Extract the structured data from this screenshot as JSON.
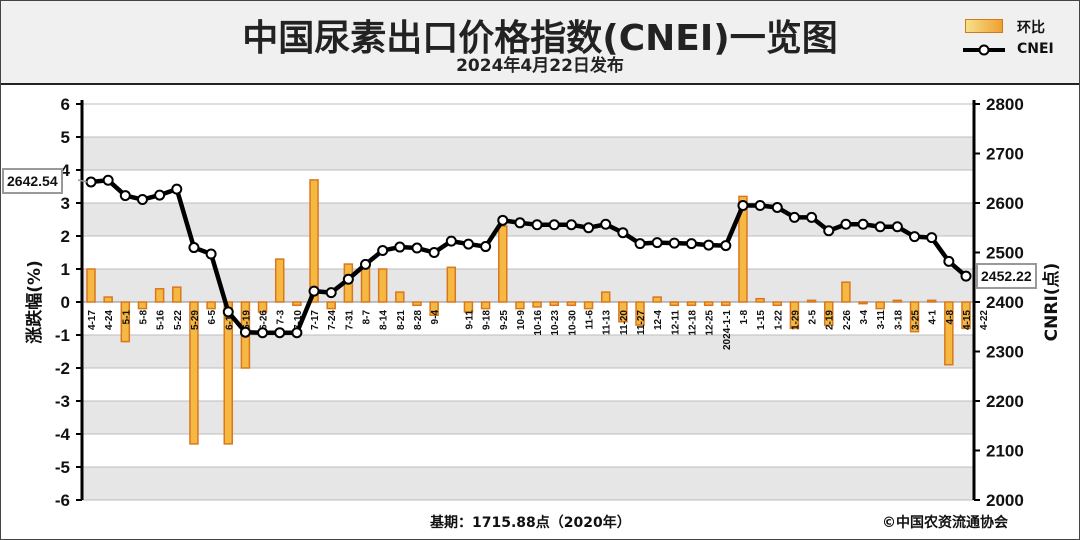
{
  "header": {
    "title": "中国尿素出口价格指数(CNEI)一览图",
    "subtitle": "2024年4月22日发布"
  },
  "legend": {
    "bar_label": "环比",
    "line_label": "CNEI"
  },
  "footer": {
    "base": "基期：1715.88点（2020年）",
    "credit": "©中国农资流通协会"
  },
  "callouts": {
    "start": "2642.54",
    "end": "2452.22"
  },
  "chart_data": {
    "type": "bar+line",
    "x_tick_labels": [
      "4-17",
      "4-24",
      "5-1",
      "5-8",
      "5-16",
      "5-22",
      "5-29",
      "6-5",
      "6-12",
      "6-19",
      "6-26",
      "7-3",
      "7-10",
      "7-17",
      "7-24",
      "7-31",
      "8-7",
      "8-14",
      "8-21",
      "8-28",
      "9-4",
      "9-11",
      "9-18",
      "9-25",
      "10-9",
      "10-16",
      "10-23",
      "10-30",
      "11-6",
      "11-13",
      "11-20",
      "11-27",
      "12-4",
      "12-11",
      "12-18",
      "12-25",
      "2024-1-1",
      "1-8",
      "1-15",
      "1-22",
      "1-29",
      "2-5",
      "2-19",
      "2-26",
      "3-4",
      "3-11",
      "3-18",
      "3-25",
      "4-1",
      "4-8",
      "4-15",
      "4-22"
    ],
    "x_tick_indices": [
      0,
      1,
      2,
      3,
      4,
      5,
      6,
      7,
      8,
      9,
      10,
      11,
      12,
      13,
      14,
      15,
      16,
      17,
      18,
      19,
      20,
      22,
      23,
      24,
      25,
      26,
      27,
      28,
      29,
      30,
      31,
      32,
      33,
      34,
      35,
      36,
      37,
      38,
      39,
      40,
      41,
      42,
      43,
      44,
      45,
      46,
      47,
      48,
      49,
      50,
      51,
      52
    ],
    "bar_series": {
      "name": "环比",
      "unit": "%",
      "values": [
        1.0,
        0.15,
        -1.2,
        -0.2,
        0.4,
        0.45,
        -4.3,
        -0.2,
        -4.3,
        -2.0,
        -0.3,
        1.3,
        -0.1,
        3.7,
        -0.2,
        1.15,
        1.15,
        1.0,
        0.3,
        -0.1,
        -0.4,
        1.05,
        -0.3,
        -0.2,
        2.3,
        -0.2,
        -0.15,
        -0.1,
        -0.1,
        -0.2,
        0.3,
        -0.6,
        -0.7,
        0.15,
        -0.1,
        -0.1,
        -0.1,
        -0.1,
        3.2,
        0.1,
        -0.1,
        -0.8,
        0.05,
        -0.7,
        0.6,
        -0.05,
        -0.2,
        0.05,
        -0.9,
        0.05,
        -1.9,
        -0.8
      ]
    },
    "line_series": {
      "name": "CNEI",
      "values": [
        2642.54,
        2646,
        2615,
        2607,
        2616,
        2628,
        2510,
        2497,
        2380,
        2339,
        2338,
        2338,
        2338,
        2422,
        2419,
        2446,
        2476,
        2504,
        2511,
        2509,
        2500,
        2523,
        2517,
        2512,
        2565,
        2560,
        2556,
        2556,
        2556,
        2550,
        2557,
        2540,
        2518,
        2520,
        2519,
        2518,
        2515,
        2514,
        2595,
        2595,
        2591,
        2571,
        2571,
        2544,
        2557,
        2557,
        2552,
        2552,
        2532,
        2530,
        2482,
        2452.22
      ]
    },
    "left_axis": {
      "label": "涨跌幅(%)",
      "range": [
        -6,
        6
      ],
      "ticks": [
        6,
        5,
        4,
        3,
        2,
        1,
        0,
        -1,
        -2,
        -3,
        -4,
        -5,
        -6
      ]
    },
    "right_axis": {
      "label": "CNRI(点)",
      "range": [
        2000,
        2800
      ],
      "ticks": [
        2800,
        2700,
        2600,
        2500,
        2400,
        2300,
        2200,
        2100,
        2000
      ]
    },
    "grid": true,
    "colors": {
      "bar_fill": "#f5b942",
      "bar_stroke": "#d9771f",
      "line": "#000000",
      "marker_fill": "#ffffff",
      "grid_band": "#e6e6e6"
    }
  }
}
